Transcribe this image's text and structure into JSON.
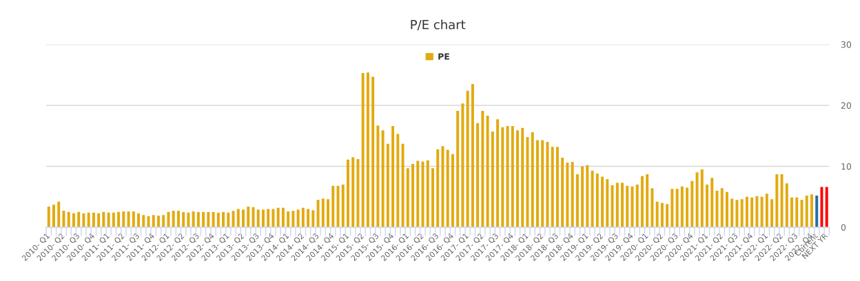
{
  "chart_data": {
    "type": "bar",
    "title": "P/E chart",
    "categories": [
      "2010- Q1",
      null,
      null,
      "2010- Q2",
      null,
      null,
      "2010- Q3",
      null,
      null,
      "2010- Q4",
      null,
      null,
      "2011- Q1",
      null,
      null,
      "2011- Q2",
      null,
      null,
      "2011- Q3",
      null,
      null,
      "2011- Q4",
      null,
      null,
      "2012- Q1",
      null,
      null,
      "2012- Q2",
      null,
      null,
      "2012- Q3",
      null,
      null,
      "2012- Q4",
      null,
      null,
      "2013- Q1",
      null,
      null,
      "2013- Q2",
      null,
      null,
      "2013- Q3",
      null,
      null,
      "2013- Q4",
      null,
      null,
      "2014- Q1",
      null,
      null,
      "2014- Q2",
      null,
      null,
      "2014- Q3",
      null,
      null,
      "2014- Q4",
      null,
      null,
      "2015- Q1",
      null,
      null,
      "2015- Q2",
      null,
      null,
      "2015- Q3",
      null,
      null,
      "2015- Q4",
      null,
      null,
      "2016- Q1",
      null,
      null,
      "2016- Q2",
      null,
      null,
      "2016- Q3",
      null,
      null,
      "2016- Q4",
      null,
      null,
      "2017- Q1",
      null,
      null,
      "2017- Q2",
      null,
      null,
      "2017- Q3",
      null,
      null,
      "2017- Q4",
      null,
      null,
      "2018- Q1",
      null,
      null,
      "2018- Q2",
      null,
      null,
      "2018- Q3",
      null,
      null,
      "2018- Q4",
      null,
      null,
      "2019- Q1",
      null,
      null,
      "2019- Q2",
      null,
      null,
      "2019- Q3",
      null,
      null,
      "2019- Q4",
      null,
      null,
      "2020- Q1",
      null,
      null,
      "2020- Q2",
      null,
      null,
      "2020- Q3",
      null,
      null,
      "2020- Q4",
      null,
      null,
      "2021- Q1",
      null,
      null,
      "2021- Q2",
      null,
      null,
      "2021- Q3",
      null,
      null,
      "2021- Q4",
      null,
      null,
      "2022- Q1",
      null,
      null,
      "2022- Q2",
      null,
      null,
      "2022- Q3",
      null,
      null,
      "2022- Q4",
      "Current",
      null,
      "NEXT YR"
    ],
    "series": [
      {
        "name": "PE",
        "color": "#e2aa10",
        "values": [
          3.4,
          3.7,
          4.2,
          2.7,
          2.5,
          2.3,
          2.5,
          2.3,
          2.4,
          2.4,
          2.3,
          2.5,
          2.4,
          2.4,
          2.5,
          2.6,
          2.6,
          2.6,
          2.3,
          2.0,
          1.8,
          2.0,
          1.9,
          2.0,
          2.5,
          2.7,
          2.7,
          2.5,
          2.4,
          2.6,
          2.5,
          2.5,
          2.5,
          2.5,
          2.4,
          2.5,
          2.4,
          2.7,
          3.0,
          2.9,
          3.4,
          3.3,
          2.9,
          2.9,
          3.0,
          3.0,
          3.2,
          3.2,
          2.6,
          2.7,
          2.9,
          3.2,
          3.0,
          2.8,
          4.5,
          4.7,
          4.6,
          6.8,
          6.8,
          7.0,
          11.1,
          11.5,
          11.2,
          25.3,
          25.4,
          24.7,
          16.7,
          15.9,
          13.7,
          16.6,
          15.3,
          13.7,
          9.7,
          10.4,
          10.9,
          10.8,
          11.0,
          9.7,
          12.8,
          13.3,
          12.7,
          12.0,
          19.1,
          20.3,
          22.4,
          23.5,
          17.1,
          19.1,
          18.3,
          15.7,
          17.7,
          16.4,
          16.6,
          16.6,
          15.9,
          16.3,
          14.8,
          15.6,
          14.3,
          14.3,
          14.0,
          13.2,
          13.2,
          11.4,
          10.6,
          10.7,
          8.7,
          10.0,
          10.2,
          9.3,
          8.8,
          8.3,
          7.9,
          6.9,
          7.3,
          7.3,
          6.8,
          6.7,
          7.0,
          8.4,
          8.7,
          6.4,
          4.2,
          4.0,
          3.8,
          6.3,
          6.3,
          6.7,
          6.5,
          7.6,
          9.0,
          9.5,
          7.0,
          8.1,
          6.0,
          6.4,
          5.8,
          4.7,
          4.5,
          4.6,
          5.0,
          4.9,
          5.1,
          5.0,
          5.5,
          4.6,
          8.7,
          8.7,
          7.2,
          4.9,
          4.9,
          4.5,
          5.2,
          5.4,
          5.2,
          6.6,
          6.6
        ],
        "colors": [
          "#e2aa10",
          "#e2aa10",
          "#e2aa10",
          "#e2aa10",
          "#e2aa10",
          "#e2aa10",
          "#e2aa10",
          "#e2aa10",
          "#e2aa10",
          "#e2aa10",
          "#e2aa10",
          "#e2aa10",
          "#e2aa10",
          "#e2aa10",
          "#e2aa10",
          "#e2aa10",
          "#e2aa10",
          "#e2aa10",
          "#e2aa10",
          "#e2aa10",
          "#e2aa10",
          "#e2aa10",
          "#e2aa10",
          "#e2aa10",
          "#e2aa10",
          "#e2aa10",
          "#e2aa10",
          "#e2aa10",
          "#e2aa10",
          "#e2aa10",
          "#e2aa10",
          "#e2aa10",
          "#e2aa10",
          "#e2aa10",
          "#e2aa10",
          "#e2aa10",
          "#e2aa10",
          "#e2aa10",
          "#e2aa10",
          "#e2aa10",
          "#e2aa10",
          "#e2aa10",
          "#e2aa10",
          "#e2aa10",
          "#e2aa10",
          "#e2aa10",
          "#e2aa10",
          "#e2aa10",
          "#e2aa10",
          "#e2aa10",
          "#e2aa10",
          "#e2aa10",
          "#e2aa10",
          "#e2aa10",
          "#e2aa10",
          "#e2aa10",
          "#e2aa10",
          "#e2aa10",
          "#e2aa10",
          "#e2aa10",
          "#e2aa10",
          "#e2aa10",
          "#e2aa10",
          "#e2aa10",
          "#e2aa10",
          "#e2aa10",
          "#e2aa10",
          "#e2aa10",
          "#e2aa10",
          "#e2aa10",
          "#e2aa10",
          "#e2aa10",
          "#e2aa10",
          "#e2aa10",
          "#e2aa10",
          "#e2aa10",
          "#e2aa10",
          "#e2aa10",
          "#e2aa10",
          "#e2aa10",
          "#e2aa10",
          "#e2aa10",
          "#e2aa10",
          "#e2aa10",
          "#e2aa10",
          "#e2aa10",
          "#e2aa10",
          "#e2aa10",
          "#e2aa10",
          "#e2aa10",
          "#e2aa10",
          "#e2aa10",
          "#e2aa10",
          "#e2aa10",
          "#e2aa10",
          "#e2aa10",
          "#e2aa10",
          "#e2aa10",
          "#e2aa10",
          "#e2aa10",
          "#e2aa10",
          "#e2aa10",
          "#e2aa10",
          "#e2aa10",
          "#e2aa10",
          "#e2aa10",
          "#e2aa10",
          "#e2aa10",
          "#e2aa10",
          "#e2aa10",
          "#e2aa10",
          "#e2aa10",
          "#e2aa10",
          "#e2aa10",
          "#e2aa10",
          "#e2aa10",
          "#e2aa10",
          "#e2aa10",
          "#e2aa10",
          "#e2aa10",
          "#e2aa10",
          "#e2aa10",
          "#e2aa10",
          "#e2aa10",
          "#e2aa10",
          "#e2aa10",
          "#e2aa10",
          "#e2aa10",
          "#e2aa10",
          "#e2aa10",
          "#e2aa10",
          "#e2aa10",
          "#e2aa10",
          "#e2aa10",
          "#e2aa10",
          "#e2aa10",
          "#e2aa10",
          "#e2aa10",
          "#e2aa10",
          "#e2aa10",
          "#e2aa10",
          "#e2aa10",
          "#e2aa10",
          "#e2aa10",
          "#e2aa10",
          "#e2aa10",
          "#e2aa10",
          "#e2aa10",
          "#e2aa10",
          "#e2aa10",
          "#e2aa10",
          "#e2aa10",
          "#e2aa10",
          "#e2aa10",
          "#1f6ea8",
          "#ff0000",
          "#ff0000"
        ]
      }
    ],
    "ylim": [
      0,
      30
    ],
    "yticks": [
      0,
      10,
      20,
      30
    ],
    "grid": "y",
    "legend": "top"
  }
}
